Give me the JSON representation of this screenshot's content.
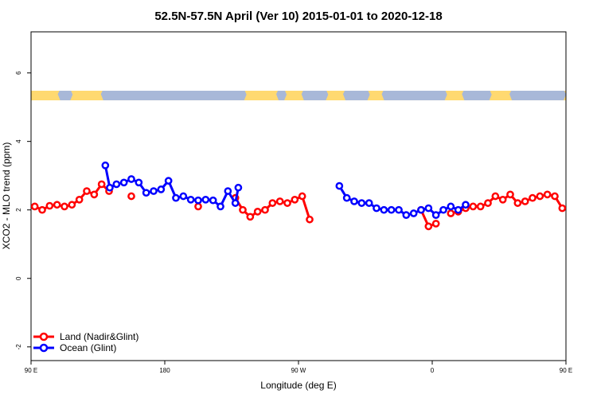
{
  "chart_data": {
    "type": "line",
    "title": "52.5N-57.5N April (Ver 10)   2015-01-01 to 2020-12-18",
    "xlabel": "Longitude (deg E)",
    "ylabel": "XCO2 - MLO trend (ppm)",
    "xlim": [
      90,
      450
    ],
    "ylim": [
      -2.4,
      7.2
    ],
    "x_ticks": [
      {
        "value": 90,
        "label": "90 E"
      },
      {
        "value": 180,
        "label": "180"
      },
      {
        "value": 270,
        "label": "90 W"
      },
      {
        "value": 360,
        "label": "0"
      },
      {
        "value": 450,
        "label": "90 E"
      }
    ],
    "y_ticks": [
      {
        "value": -2,
        "label": "-2"
      },
      {
        "value": 0,
        "label": "0"
      },
      {
        "value": 2,
        "label": "2"
      },
      {
        "value": 4,
        "label": "4"
      },
      {
        "value": 6,
        "label": "6"
      }
    ],
    "legend": {
      "placement": "bottom-left"
    },
    "colors": {
      "land": "#ff0000",
      "ocean": "#0000ff",
      "map_land": "#ffd970",
      "map_ocean": "#a8b8d8"
    },
    "series": [
      {
        "name": "Land (Nadir&Glint)",
        "color": "#ff0000",
        "points": [
          [
            92.5,
            2.1
          ],
          [
            97.5,
            2.0
          ],
          [
            102.5,
            2.12
          ],
          [
            107.5,
            2.15
          ],
          [
            112.5,
            2.1
          ],
          [
            117.5,
            2.15
          ],
          [
            122.5,
            2.3
          ],
          [
            127.5,
            2.55
          ],
          [
            132.5,
            2.45
          ],
          [
            137.5,
            2.75
          ],
          [
            142.5,
            2.55
          ],
          null,
          [
            157.5,
            2.4
          ],
          null,
          [
            202.5,
            2.1
          ],
          null,
          [
            227.5,
            2.35
          ],
          [
            232.5,
            2.0
          ],
          [
            237.5,
            1.8
          ],
          [
            242.5,
            1.95
          ],
          [
            247.5,
            2.0
          ],
          [
            252.5,
            2.2
          ],
          [
            257.5,
            2.25
          ],
          [
            262.5,
            2.2
          ],
          [
            267.5,
            2.3
          ],
          [
            272.5,
            2.4
          ],
          [
            277.5,
            1.72
          ],
          null,
          [
            352.5,
            2.0
          ],
          [
            357.5,
            1.52
          ],
          [
            362.5,
            1.6
          ],
          null,
          [
            372.5,
            1.9
          ],
          [
            377.5,
            1.95
          ],
          [
            382.5,
            2.05
          ],
          [
            387.5,
            2.1
          ],
          [
            392.5,
            2.1
          ],
          [
            397.5,
            2.2
          ],
          [
            402.5,
            2.4
          ],
          [
            407.5,
            2.3
          ],
          [
            412.5,
            2.45
          ],
          [
            417.5,
            2.2
          ],
          [
            422.5,
            2.25
          ],
          [
            427.5,
            2.35
          ],
          [
            432.5,
            2.4
          ],
          [
            437.5,
            2.45
          ],
          [
            442.5,
            2.4
          ],
          [
            447.5,
            2.05
          ],
          [
            452.5,
            2.1
          ],
          [
            457.5,
            2.05
          ],
          [
            462.5,
            2.12
          ],
          [
            467.5,
            2.15
          ],
          [
            472.5,
            2.12
          ],
          [
            477.5,
            2.15
          ],
          [
            482.5,
            2.3
          ],
          [
            487.5,
            2.55
          ],
          [
            492.5,
            2.45
          ],
          [
            497.5,
            2.75
          ],
          [
            502.5,
            2.55
          ],
          null,
          [
            517.5,
            2.4
          ]
        ]
      },
      {
        "name": "Ocean (Glint)",
        "color": "#0000ff",
        "points": [
          [
            140,
            3.3
          ],
          [
            143,
            2.65
          ],
          [
            147.5,
            2.75
          ],
          [
            152.5,
            2.8
          ],
          [
            157.5,
            2.9
          ],
          [
            162.5,
            2.8
          ],
          [
            167.5,
            2.5
          ],
          [
            172.5,
            2.55
          ],
          [
            177.5,
            2.6
          ],
          [
            182.5,
            2.85
          ],
          [
            187.5,
            2.35
          ],
          [
            192.5,
            2.4
          ],
          [
            197.5,
            2.3
          ],
          [
            202.5,
            2.28
          ],
          [
            207.5,
            2.3
          ],
          [
            212.5,
            2.28
          ],
          [
            217.5,
            2.1
          ],
          [
            222.5,
            2.55
          ],
          [
            227.5,
            2.2
          ],
          [
            229.5,
            2.65
          ],
          null,
          [
            297.5,
            2.7
          ],
          [
            302.5,
            2.35
          ],
          [
            307.5,
            2.25
          ],
          [
            312.5,
            2.2
          ],
          [
            317.5,
            2.2
          ],
          [
            322.5,
            2.05
          ],
          [
            327.5,
            2.0
          ],
          [
            332.5,
            2.0
          ],
          [
            337.5,
            2.0
          ],
          [
            342.5,
            1.85
          ],
          [
            347.5,
            1.9
          ],
          [
            352.5,
            2.0
          ],
          [
            357.5,
            2.05
          ],
          [
            362.5,
            1.85
          ],
          [
            367.5,
            2.0
          ],
          [
            372.5,
            2.1
          ],
          [
            377.5,
            2.0
          ],
          [
            382.5,
            2.15
          ],
          null,
          [
            500,
            3.3
          ],
          [
            503,
            2.65
          ],
          [
            507.5,
            2.75
          ],
          [
            512.5,
            2.8
          ],
          [
            517.5,
            2.9
          ],
          [
            522.5,
            2.8
          ],
          [
            527.5,
            2.5
          ],
          [
            532.5,
            2.55
          ],
          [
            537.5,
            2.6
          ]
        ]
      }
    ],
    "map_strip": {
      "y_bottom": 5.2,
      "y_top": 5.48
    }
  }
}
